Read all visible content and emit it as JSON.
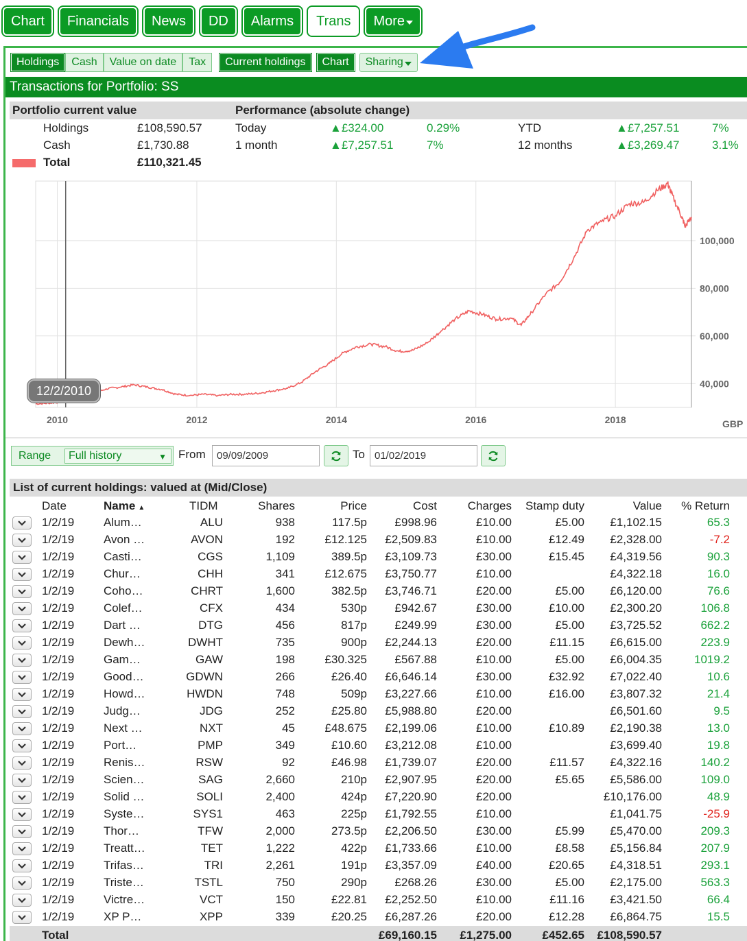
{
  "topnav": [
    {
      "label": "Chart",
      "active": false
    },
    {
      "label": "Financials",
      "active": false
    },
    {
      "label": "News",
      "active": false
    },
    {
      "label": "DD",
      "active": false
    },
    {
      "label": "Alarms",
      "active": false
    },
    {
      "label": "Trans",
      "active": true
    },
    {
      "label": "More",
      "active": false
    }
  ],
  "subnav": {
    "tabs": [
      "Holdings",
      "Cash",
      "Value on date",
      "Tax"
    ],
    "current_holdings": "Current holdings",
    "chart": "Chart",
    "sharing": "Sharing"
  },
  "title": "Transactions for Portfolio: SS",
  "summary": {
    "current_value_header": "Portfolio current value",
    "performance_header": "Performance (absolute change)",
    "holdings_label": "Holdings",
    "holdings_value": "£108,590.57",
    "cash_label": "Cash",
    "cash_value": "£1,730.88",
    "total_label": "Total",
    "total_value": "£110,321.45",
    "today_label": "Today",
    "today_change": "▲£324.00",
    "today_pct": "0.29%",
    "month_label": "1 month",
    "month_change": "▲£7,257.51",
    "month_pct": "7%",
    "ytd_label": "YTD",
    "ytd_change": "▲£7,257.51",
    "ytd_pct": "7%",
    "year_label": "12 months",
    "year_change": "▲£3,269.47",
    "year_pct": "3.1%"
  },
  "chart_data": {
    "type": "line",
    "series": [
      {
        "values": [
          [
            2009.69,
            31500
          ],
          [
            2009.9,
            31800
          ],
          [
            2010.1,
            32400
          ],
          [
            2010.3,
            33000
          ],
          [
            2010.5,
            35500
          ],
          [
            2010.7,
            37800
          ],
          [
            2010.9,
            38500
          ],
          [
            2011.1,
            39500
          ],
          [
            2011.3,
            38500
          ],
          [
            2011.5,
            37500
          ],
          [
            2011.7,
            35500
          ],
          [
            2011.9,
            35000
          ],
          [
            2012.1,
            35500
          ],
          [
            2012.3,
            35000
          ],
          [
            2012.5,
            35500
          ],
          [
            2012.7,
            35500
          ],
          [
            2012.9,
            36000
          ],
          [
            2013.1,
            37000
          ],
          [
            2013.3,
            38000
          ],
          [
            2013.5,
            40500
          ],
          [
            2013.7,
            45000
          ],
          [
            2013.9,
            48500
          ],
          [
            2014.1,
            53000
          ],
          [
            2014.3,
            55500
          ],
          [
            2014.5,
            56500
          ],
          [
            2014.7,
            55500
          ],
          [
            2014.9,
            53500
          ],
          [
            2015.1,
            54000
          ],
          [
            2015.3,
            57000
          ],
          [
            2015.5,
            62000
          ],
          [
            2015.7,
            67000
          ],
          [
            2015.9,
            70500
          ],
          [
            2016.1,
            69000
          ],
          [
            2016.3,
            67000
          ],
          [
            2016.5,
            67500
          ],
          [
            2016.65,
            64500
          ],
          [
            2016.8,
            70000
          ],
          [
            2017.0,
            77500
          ],
          [
            2017.2,
            82500
          ],
          [
            2017.4,
            92500
          ],
          [
            2017.6,
            104500
          ],
          [
            2017.8,
            108000
          ],
          [
            2018.0,
            110500
          ],
          [
            2018.2,
            115500
          ],
          [
            2018.4,
            116000
          ],
          [
            2018.6,
            121000
          ],
          [
            2018.75,
            124000
          ],
          [
            2018.8,
            120000
          ],
          [
            2018.95,
            110000
          ],
          [
            2019.0,
            106000
          ],
          [
            2019.09,
            110000
          ]
        ]
      }
    ],
    "x_ticks": [
      "2010",
      "2012",
      "2014",
      "2016",
      "2018"
    ],
    "y_ticks": [
      "40,000",
      "60,000",
      "80,000",
      "100,000"
    ],
    "ylabel": "GBP",
    "xlim": [
      2009.69,
      2019.09
    ],
    "ylim": [
      30000,
      125000
    ],
    "grid": true,
    "tooltip_date": "12/2/2010",
    "cursor_x": 2010.12,
    "line_color": "#f06060"
  },
  "range": {
    "label": "Range",
    "value": "Full history",
    "from_label": "From",
    "from_value": "09/09/2009",
    "to_label": "To",
    "to_value": "01/02/2019"
  },
  "holdings": {
    "header": "List of current holdings: valued at (Mid/Close)",
    "columns": [
      "Date",
      "Name",
      "TIDM",
      "Shares",
      "Price",
      "Cost",
      "Charges",
      "Stamp duty",
      "Value",
      "% Return"
    ],
    "sort_indicator": "▲",
    "rows": [
      [
        "1/2/19",
        "Alum…",
        "ALU",
        "938",
        "117.5p",
        "£998.96",
        "£10.00",
        "£5.00",
        "£1,102.15",
        "65.3"
      ],
      [
        "1/2/19",
        "Avon …",
        "AVON",
        "192",
        "£12.125",
        "£2,509.83",
        "£10.00",
        "£12.49",
        "£2,328.00",
        "-7.2"
      ],
      [
        "1/2/19",
        "Casti…",
        "CGS",
        "1,109",
        "389.5p",
        "£3,109.73",
        "£30.00",
        "£15.45",
        "£4,319.56",
        "90.3"
      ],
      [
        "1/2/19",
        "Chur…",
        "CHH",
        "341",
        "£12.675",
        "£3,750.77",
        "£10.00",
        "",
        "£4,322.18",
        "16.0"
      ],
      [
        "1/2/19",
        "Coho…",
        "CHRT",
        "1,600",
        "382.5p",
        "£3,746.71",
        "£20.00",
        "£5.00",
        "£6,120.00",
        "76.6"
      ],
      [
        "1/2/19",
        "Colef…",
        "CFX",
        "434",
        "530p",
        "£942.67",
        "£30.00",
        "£10.00",
        "£2,300.20",
        "106.8"
      ],
      [
        "1/2/19",
        "Dart …",
        "DTG",
        "456",
        "817p",
        "£249.99",
        "£30.00",
        "£5.00",
        "£3,725.52",
        "662.2"
      ],
      [
        "1/2/19",
        "Dewh…",
        "DWHT",
        "735",
        "900p",
        "£2,244.13",
        "£20.00",
        "£11.15",
        "£6,615.00",
        "223.9"
      ],
      [
        "1/2/19",
        "Gam…",
        "GAW",
        "198",
        "£30.325",
        "£567.88",
        "£10.00",
        "£5.00",
        "£6,004.35",
        "1019.2"
      ],
      [
        "1/2/19",
        "Good…",
        "GDWN",
        "266",
        "£26.40",
        "£6,646.14",
        "£30.00",
        "£32.92",
        "£7,022.40",
        "10.6"
      ],
      [
        "1/2/19",
        "Howd…",
        "HWDN",
        "748",
        "509p",
        "£3,227.66",
        "£10.00",
        "£16.00",
        "£3,807.32",
        "21.4"
      ],
      [
        "1/2/19",
        "Judg…",
        "JDG",
        "252",
        "£25.80",
        "£5,988.80",
        "£20.00",
        "",
        "£6,501.60",
        "9.5"
      ],
      [
        "1/2/19",
        "Next …",
        "NXT",
        "45",
        "£48.675",
        "£2,199.06",
        "£10.00",
        "£10.89",
        "£2,190.38",
        "13.0"
      ],
      [
        "1/2/19",
        "Port…",
        "PMP",
        "349",
        "£10.60",
        "£3,212.08",
        "£10.00",
        "",
        "£3,699.40",
        "19.8"
      ],
      [
        "1/2/19",
        "Renis…",
        "RSW",
        "92",
        "£46.98",
        "£1,739.07",
        "£20.00",
        "£11.57",
        "£4,322.16",
        "140.2"
      ],
      [
        "1/2/19",
        "Scien…",
        "SAG",
        "2,660",
        "210p",
        "£2,907.95",
        "£20.00",
        "£5.65",
        "£5,586.00",
        "109.0"
      ],
      [
        "1/2/19",
        "Solid …",
        "SOLI",
        "2,400",
        "424p",
        "£7,220.90",
        "£20.00",
        "",
        "£10,176.00",
        "48.9"
      ],
      [
        "1/2/19",
        "Syste…",
        "SYS1",
        "463",
        "225p",
        "£1,792.55",
        "£10.00",
        "",
        "£1,041.75",
        "-25.9"
      ],
      [
        "1/2/19",
        "Thor…",
        "TFW",
        "2,000",
        "273.5p",
        "£2,206.50",
        "£30.00",
        "£5.99",
        "£5,470.00",
        "209.3"
      ],
      [
        "1/2/19",
        "Treatt…",
        "TET",
        "1,222",
        "422p",
        "£1,733.66",
        "£10.00",
        "£8.58",
        "£5,156.84",
        "207.9"
      ],
      [
        "1/2/19",
        "Trifas…",
        "TRI",
        "2,261",
        "191p",
        "£3,357.09",
        "£40.00",
        "£20.65",
        "£4,318.51",
        "293.1"
      ],
      [
        "1/2/19",
        "Triste…",
        "TSTL",
        "750",
        "290p",
        "£268.26",
        "£30.00",
        "£5.00",
        "£2,175.00",
        "563.3"
      ],
      [
        "1/2/19",
        "Victre…",
        "VCT",
        "150",
        "£22.81",
        "£2,252.50",
        "£10.00",
        "£11.16",
        "£3,421.50",
        "66.4"
      ],
      [
        "1/2/19",
        "XP P…",
        "XPP",
        "339",
        "£20.25",
        "£6,287.26",
        "£20.00",
        "£12.28",
        "£6,864.75",
        "15.5"
      ]
    ],
    "total": {
      "label": "Total",
      "cost": "£69,160.15",
      "charges": "£1,275.00",
      "stamp": "£452.65",
      "value": "£108,590.57"
    }
  }
}
